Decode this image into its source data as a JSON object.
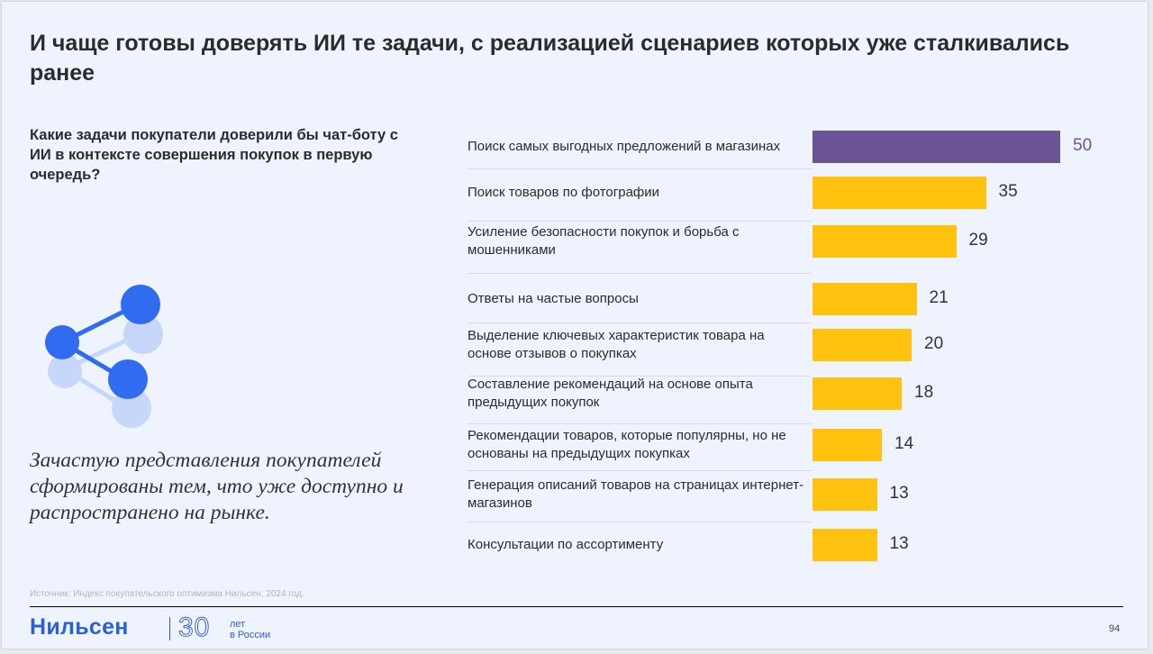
{
  "title": "И чаще готовы доверять ИИ те задачи, с реализацией сценариев которых уже сталкивались ранее",
  "question": "Какие задачи покупатели доверили бы чат-боту с ИИ в контексте совершения покупок в первую очередь?",
  "quote": "Зачастую представления покупателей сформированы тем, что уже доступно и распространено на рынке.",
  "source": "Источник: Индекс покупательского оптимизма Нильсен, 2024 год.",
  "footer": {
    "logo": "Нильсен",
    "anniversary_number": "30",
    "anniversary_line1": "лет",
    "anniversary_line2": "в России",
    "page_number": "94"
  },
  "colors": {
    "highlight_bar": "#6a5496",
    "bar": "#ffc20e",
    "highlight_value": "#6a5496",
    "accent": "#2d5fd8"
  },
  "chart_data": {
    "type": "bar",
    "orientation": "horizontal",
    "categories": [
      "Поиск самых выгодных предложений в магазинах",
      "Поиск товаров по фотографии",
      "Усиление безопасности покупок и борьба с мошенниками",
      "Ответы на частые вопросы",
      "Выделение ключевых характеристик товара на основе отзывов о покупках",
      "Составление рекомендаций на основе опыта предыдущих покупок",
      "Рекомендации товаров, которые популярны, но не основаны на предыдущих покупках",
      "Генерация описаний товаров на страницах интернет-магазинов",
      "Консультации по ассортименту"
    ],
    "values": [
      50,
      35,
      29,
      21,
      20,
      18,
      14,
      13,
      13
    ],
    "highlight_index": 0,
    "xlim": [
      0,
      50
    ],
    "grid": false,
    "legend": "none"
  }
}
